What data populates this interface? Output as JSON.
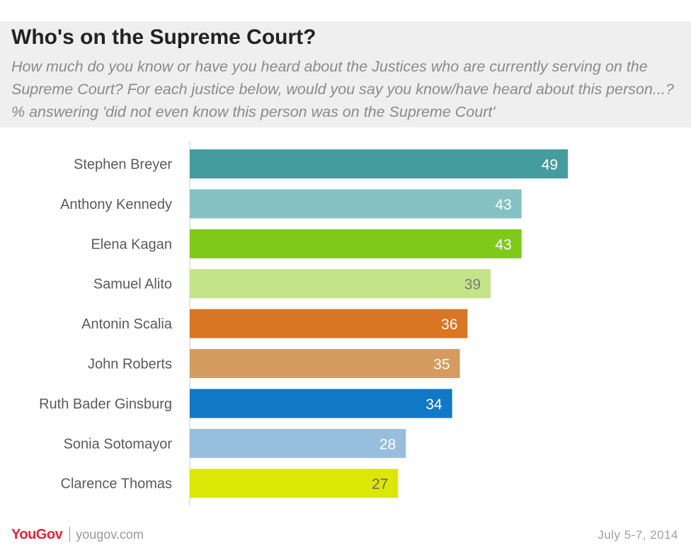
{
  "header": {
    "title": "Who's on the Supreme Court?",
    "subtitle": "How much do you know or have you heard about the Justices who are currently serving on the Supreme Court? For each justice below, would you say you know/have heard about this person...? % answering 'did not even know this person was on the Supreme Court'"
  },
  "footer": {
    "logo_part1": "YouGov",
    "site": "yougov.com",
    "date": "July 5-7, 2014"
  },
  "chart_data": {
    "type": "bar",
    "orientation": "horizontal",
    "categories": [
      "Stephen Breyer",
      "Anthony Kennedy",
      "Elena Kagan",
      "Samuel Alito",
      "Antonin Scalia",
      "John Roberts",
      "Ruth Bader Ginsburg",
      "Sonia Sotomayor",
      "Clarence Thomas"
    ],
    "values": [
      49,
      43,
      43,
      39,
      36,
      35,
      34,
      28,
      27
    ],
    "colors": [
      "#449c9f",
      "#85c1c2",
      "#80c91b",
      "#c5e48a",
      "#d97624",
      "#d59b5f",
      "#1178c5",
      "#97bedd",
      "#dce705"
    ],
    "label_colors": [
      "#ffffff",
      "#ffffff",
      "#ffffff",
      "#7a7a7a",
      "#ffffff",
      "#ffffff",
      "#ffffff",
      "#ffffff",
      "#6a6a6a"
    ],
    "xlim": [
      0,
      100
    ],
    "grid": false,
    "legend": "none"
  }
}
